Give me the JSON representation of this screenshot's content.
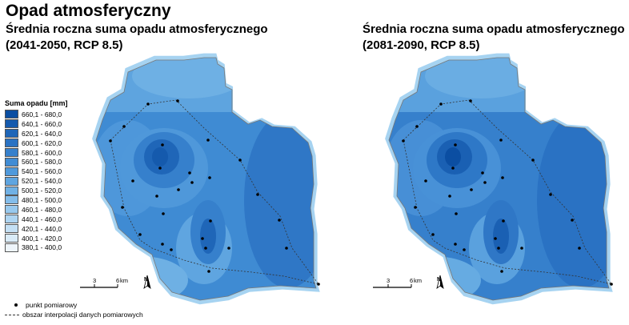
{
  "main_title": "Opad atmosferyczny",
  "maps": [
    {
      "title_line1": "Średnia roczna suma opadu atmosferycznego",
      "title_line2": "(2041-2050, RCP 8.5)",
      "scenario": "2041-2050"
    },
    {
      "title_line1": "Średnia roczna suma opadu atmosferycznego",
      "title_line2": "(2081-2090, RCP 8.5)",
      "scenario": "2081-2090"
    }
  ],
  "legend": {
    "title": "Suma opadu [mm]",
    "classes": [
      {
        "label": "660,1 - 680,0",
        "color": "#0b4ea2"
      },
      {
        "label": "640,1 - 660,0",
        "color": "#155aad"
      },
      {
        "label": "620,1 - 640,0",
        "color": "#1f66b8"
      },
      {
        "label": "600,1 - 620,0",
        "color": "#2a72c3"
      },
      {
        "label": "580,1 - 600,0",
        "color": "#3680cc"
      },
      {
        "label": "560,1 - 580,0",
        "color": "#418cd4"
      },
      {
        "label": "540,1 - 560,0",
        "color": "#4f99db"
      },
      {
        "label": "520,1 - 540,0",
        "color": "#5fa5e0"
      },
      {
        "label": "500,1 - 520,0",
        "color": "#70b1e5"
      },
      {
        "label": "480,1 - 500,0",
        "color": "#84bdea"
      },
      {
        "label": "460,1 - 480,0",
        "color": "#98c9ee"
      },
      {
        "label": "440,1 - 460,0",
        "color": "#aed5f2"
      },
      {
        "label": "420,1 - 440,0",
        "color": "#c4e0f5"
      },
      {
        "label": "400,1 - 420,0",
        "color": "#d9ebf8"
      },
      {
        "label": "380,1 - 400,0",
        "color": "#eef5fb"
      }
    ],
    "point_label": "punkt pomiarowy",
    "area_label": "obszar interpolacji danych pomiarowych"
  },
  "scale_bar": {
    "tick_labels": [
      "0",
      "3",
      "6"
    ],
    "unit": "km"
  },
  "north_arrow": {
    "label": "N"
  },
  "icons": {
    "north": "north-arrow-icon",
    "point": "measurement-point-icon"
  }
}
